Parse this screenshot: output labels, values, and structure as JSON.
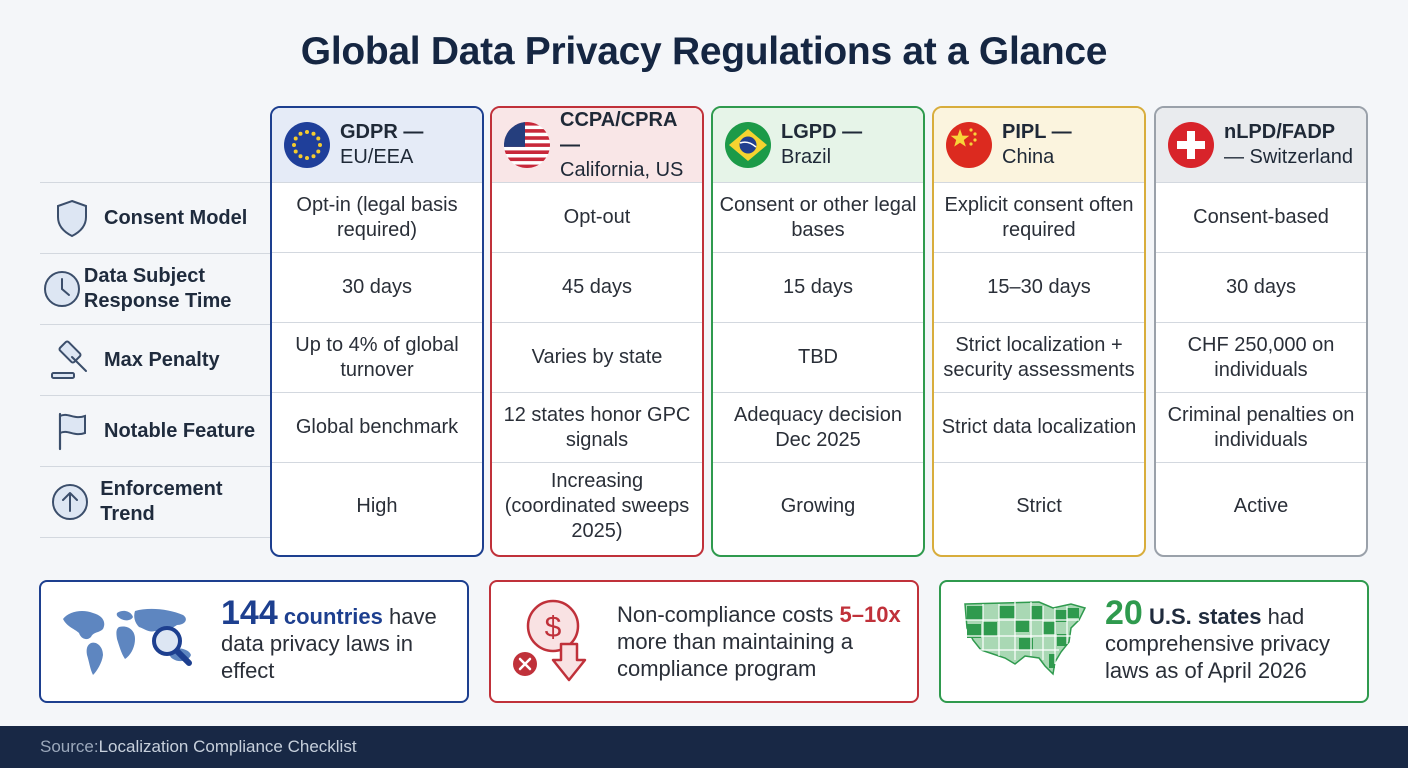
{
  "title": "Global Data Privacy Regulations at a Glance",
  "row_labels": [
    {
      "label": "Consent Model",
      "icon": "shield-icon"
    },
    {
      "label": "Data Subject Response Time",
      "icon": "clock-icon"
    },
    {
      "label": "Max Penalty",
      "icon": "gavel-icon"
    },
    {
      "label": "Notable Feature",
      "icon": "flag-icon"
    },
    {
      "label": "Enforcement Trend",
      "icon": "trend-up-icon"
    }
  ],
  "regulations": [
    {
      "code": "GDPR —",
      "region": "EU/EEA",
      "flag": "eu-flag-icon",
      "color": "#1d3f8f",
      "header_bg": "#e5ebf7",
      "cells": [
        "Opt-in (legal basis required)",
        "30 days",
        "Up to 4% of global turnover",
        "Global benchmark",
        "High"
      ]
    },
    {
      "code": "CCPA/CPRA —",
      "region": "California, US",
      "flag": "us-flag-icon",
      "color": "#c0313a",
      "header_bg": "#f9e6e7",
      "cells": [
        "Opt-out",
        "45 days",
        "Varies by state",
        "12 states honor GPC signals",
        "Increasing (coordinated sweeps 2025)"
      ]
    },
    {
      "code": "LGPD —",
      "region": "Brazil",
      "flag": "brazil-flag-icon",
      "color": "#2f9a4e",
      "header_bg": "#e6f4e8",
      "cells": [
        "Consent or other legal bases",
        "15 days",
        "TBD",
        "Adequacy decision Dec 2025",
        "Growing"
      ]
    },
    {
      "code": "PIPL —",
      "region": "China",
      "flag": "china-flag-icon",
      "color": "#d8ad3c",
      "header_bg": "#fbf4de",
      "cells": [
        "Explicit consent often required",
        "15–30 days",
        "Strict localization + security assessments",
        "Strict data localization",
        "Strict"
      ]
    },
    {
      "code": "nLPD/FADP",
      "region": "— Switzerland",
      "flag": "swiss-flag-icon",
      "color": "#9aa1aa",
      "header_bg": "#e9ebee",
      "cells": [
        "Consent-based",
        "30 days",
        "CHF 250,000 on individuals",
        "Criminal penalties on individuals",
        "Active"
      ]
    }
  ],
  "stats": [
    {
      "big": "144",
      "strong": "countries",
      "rest": " have data privacy laws in effect",
      "icon": "world-map-search-icon",
      "color": "#1d3f8f"
    },
    {
      "pre": "Non-compliance costs ",
      "strong": "5–10x",
      "rest": " more than maintaining a compliance program",
      "icon": "cost-down-icon",
      "color": "#c0313a"
    },
    {
      "big": "20",
      "strong": "U.S. states",
      "rest": " had comprehensive privacy laws as of April 2026",
      "icon": "us-map-icon",
      "color": "#2f9a4e"
    }
  ],
  "footer": {
    "prefix": "Source:",
    "text": " Localization Compliance Checklist"
  }
}
